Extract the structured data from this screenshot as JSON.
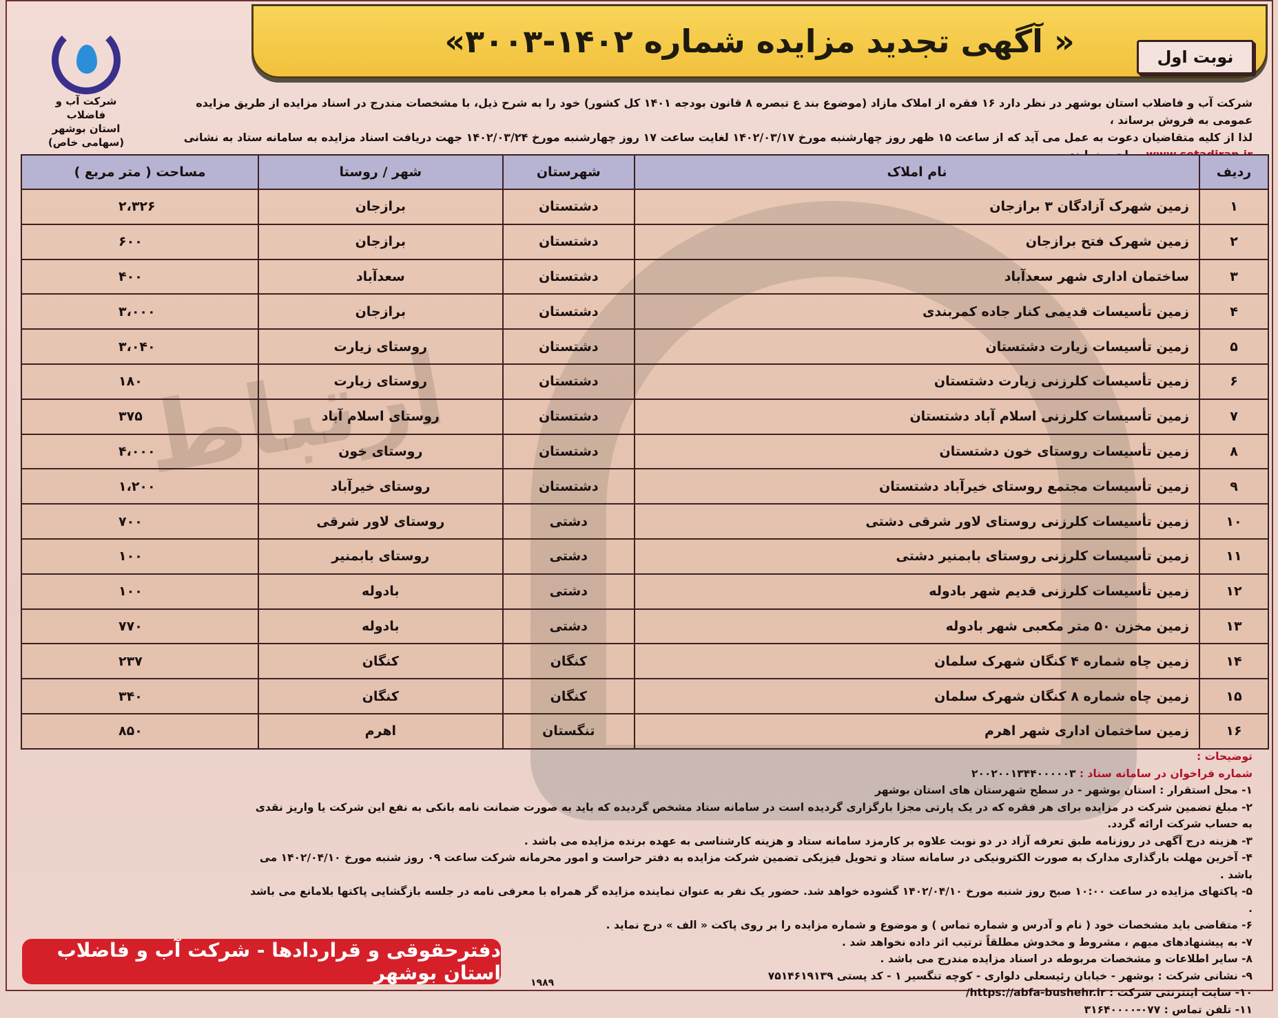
{
  "title": "« آگهی تجدید مزایده شماره ۱۴۰۲-۳۰۰۳»",
  "turn_label": "نوبت اول",
  "logo": {
    "lines": [
      "شرکت آب و فاضلاب",
      "استان بوشهر",
      "(سهامی خاص)"
    ]
  },
  "intro": {
    "line1": "شرکت آب و فاضلاب استان بوشهر در نظر دارد ۱۶ فقره از املاک مازاد (موضوع بند ع تبصره ۸ قانون بودجه ۱۴۰۱ کل کشور) خود را به شرح ذیل، با مشخصات مندرج در اسناد مزایده از طریق مزایده عمومی به فروش برساند ،",
    "line2": "لذا از کلیه متقاضیان دعوت به عمل می آید که از ساعت ۱۵ ظهر روز چهارشنبه مورخ ۱۴۰۲/۰۳/۱۷ لغایت ساعت ۱۷ روز چهارشنبه مورخ ۱۴۰۲/۰۳/۲۴ جهت دریافت اسناد مزایده به سامانه ستاد به نشانی",
    "url": "www.setadiran.ir",
    "line3": " مراجعه نمایند."
  },
  "table": {
    "headers": [
      "ردیف",
      "نام املاک",
      "شهرستان",
      "شهر / روستا",
      "مساحت ( متر مربع )"
    ],
    "rows": [
      [
        "۱",
        "زمین شهرک آزادگان ۳ برازجان",
        "دشتستان",
        "برازجان",
        "۲،۳۲۶"
      ],
      [
        "۲",
        "زمین شهرک فتح برازجان",
        "دشتستان",
        "برازجان",
        "۶۰۰"
      ],
      [
        "۳",
        "ساختمان اداری شهر سعدآباد",
        "دشتستان",
        "سعدآباد",
        "۴۰۰"
      ],
      [
        "۴",
        "زمین تأسیسات قدیمی کنار جاده کمربندی",
        "دشتستان",
        "برازجان",
        "۳،۰۰۰"
      ],
      [
        "۵",
        "زمین تأسیسات زیارت دشتستان",
        "دشتستان",
        "روستای زیارت",
        "۳،۰۴۰"
      ],
      [
        "۶",
        "زمین تأسیسات کلرزنی زیارت دشتستان",
        "دشتستان",
        "روستای زیارت",
        "۱۸۰"
      ],
      [
        "۷",
        "زمین تأسیسات کلرزنی اسلام آباد دشتستان",
        "دشتستان",
        "روستای اسلام آباد",
        "۳۷۵"
      ],
      [
        "۸",
        "زمین تأسیسات روستای خون دشتستان",
        "دشتستان",
        "روستای خون",
        "۴،۰۰۰"
      ],
      [
        "۹",
        "زمین تأسیسات مجتمع روستای خیرآباد دشتستان",
        "دشتستان",
        "روستای خیرآباد",
        "۱،۲۰۰"
      ],
      [
        "۱۰",
        "زمین تأسیسات کلرزنی روستای لاور شرقی دشتی",
        "دشتی",
        "روستای لاور شرقی",
        "۷۰۰"
      ],
      [
        "۱۱",
        "زمین تأسیسات کلرزنی روستای بابمنیر دشتی",
        "دشتی",
        "روستای بابمنیر",
        "۱۰۰"
      ],
      [
        "۱۲",
        "زمین تأسیسات کلرزنی قدیم شهر بادوله",
        "دشتی",
        "بادوله",
        "۱۰۰"
      ],
      [
        "۱۳",
        "زمین مخزن ۵۰ متر مکعبی شهر بادوله",
        "دشتی",
        "بادوله",
        "۷۷۰"
      ],
      [
        "۱۴",
        "زمین چاه شماره ۴ کنگان شهرک سلمان",
        "کنگان",
        "کنگان",
        "۲۳۷"
      ],
      [
        "۱۵",
        "زمین چاه شماره ۸ کنگان شهرک سلمان",
        "کنگان",
        "کنگان",
        "۳۴۰"
      ],
      [
        "۱۶",
        "زمین ساختمان اداری شهر اهرم",
        "تنگستان",
        "اهرم",
        "۸۵۰"
      ]
    ]
  },
  "notes": {
    "heading": "توضیحات :",
    "setad_label": "شماره فراخوان در سامانه ستاد :",
    "setad_number": "۲۰۰۲۰۰۱۳۴۴۰۰۰۰۰۳",
    "items": [
      "۱- محل استقرار : استان بوشهر - در سطح شهرستان های استان بوشهر",
      "۲- مبلغ تضمین شرکت در مزایده برای هر فقره که در یک پارتی مجزا بارگزاری گردیده است در سامانه ستاد مشخص گردیده که باید به صورت ضمانت نامه بانکی به نفع این شرکت یا واریز نقدی به حساب شرکت ارائه گردد.",
      "۳- هزینه درج آگهی در روزنامه طبق تعرفه آزاد در دو نوبت علاوه بر کارمزد سامانه ستاد و هزینه کارشناسی به عهده برنده مزایده می باشد .",
      "۴- آخرین مهلت بارگذاری مدارک به صورت الکترونیکی در سامانه ستاد و تحویل فیزیکی تضمین شرکت مزایده به دفتر حراست و امور محرمانه شرکت ساعت ۰۹ روز شنبه مورخ ۱۴۰۲/۰۴/۱۰ می باشد .",
      "۵- پاکتهای مزایده در ساعت ۱۰:۰۰ صبح روز شنبه مورخ ۱۴۰۲/۰۴/۱۰ گشوده خواهد شد. حضور یک نفر به عنوان نماینده مزایده گر همراه با معرفی نامه در جلسه بازگشایی پاکتها بلامانع می باشد .",
      "۶- متقاضی باید مشخصات خود ( نام و آدرس و شماره تماس ) و موضوع و شماره مزایده را بر روی پاکت « الف » درج نماید .",
      "۷- به پیشنهادهای مبهم ، مشروط و مخدوش مطلقاً ترتیب اثر داده نخواهد شد .",
      "۸- سایر اطلاعات و مشخصات مربوطه در اسناد مزایده مندرج می باشد .",
      "۹- نشانی شرکت : بوشهر - خیابان رئیسعلی دلواری - کوچه تنگسیر ۱ - کد پستی ۷۵۱۴۶۱۹۱۳۹",
      "۱۰- سایت اینترنتی شرکت : https://abfa-bushehr.ir/",
      "۱۱- تلفن تماس : ۰۷۷-۳۱۶۴۰۰۰۰"
    ]
  },
  "footer": "دفترحقوقی و قراردادها - شرکت آب و فاضلاب استان بوشهر",
  "page_number": "۱۹۸۹",
  "watermark": "ارتباط گستران",
  "colors": {
    "banner": "#f1c13c",
    "header_row": "#b7b3d3",
    "footer": "#d5202a",
    "accent_text": "#b0102a"
  }
}
